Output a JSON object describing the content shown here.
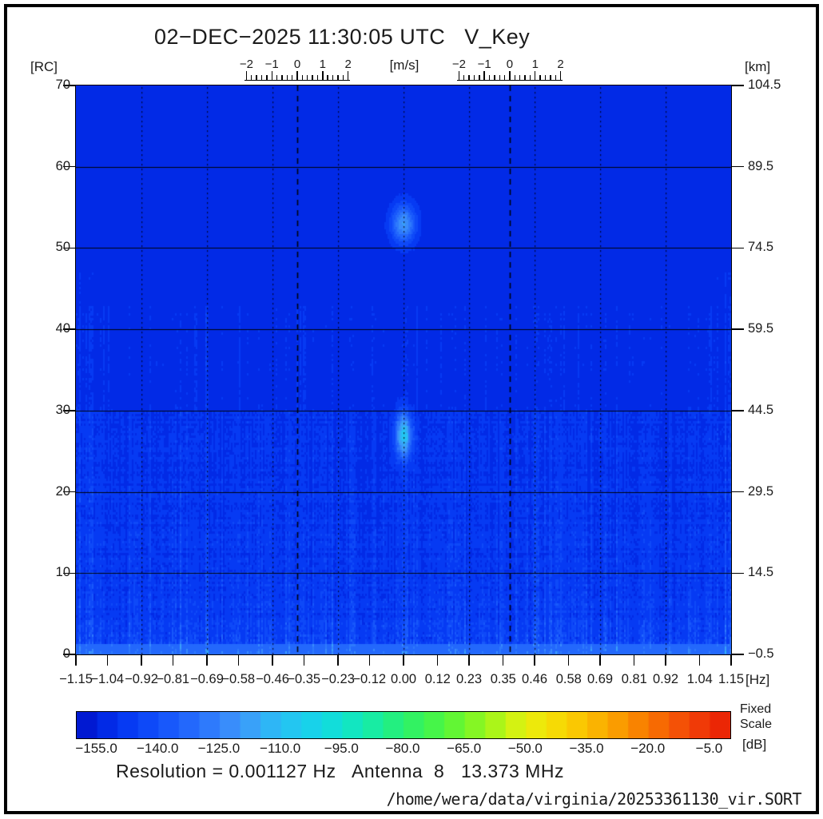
{
  "header": {
    "title": "02−DEC−2025 11:30:05 UTC   V_Key"
  },
  "chart_data": {
    "type": "heatmap",
    "title": "02−DEC−2025 11:30:05 UTC   V_Key",
    "x_axis": {
      "unit": "[Hz]",
      "min": -1.15,
      "max": 1.15,
      "tick_labels": [
        "−1.15",
        "−1.04",
        "−0.92",
        "−0.81",
        "−0.69",
        "−0.58",
        "−0.46",
        "−0.35",
        "−0.23",
        "−0.12",
        "0.00",
        "0.12",
        "0.23",
        "0.35",
        "0.46",
        "0.58",
        "0.69",
        "0.81",
        "0.92",
        "1.04",
        "1.15"
      ]
    },
    "y_axis_left": {
      "unit": "[RC]",
      "min": 0,
      "max": 70,
      "ticks": [
        70,
        60,
        50,
        40,
        30,
        20,
        10,
        0
      ]
    },
    "y_axis_right": {
      "unit": "[km]",
      "tick_labels": [
        "104.5",
        "89.5",
        "74.5",
        "59.5",
        "44.5",
        "29.5",
        "14.5",
        "−0.5"
      ]
    },
    "velocity_rulers": {
      "unit": "[m/s]",
      "centers_hz": [
        -0.373,
        0.373
      ],
      "major_tick_labels": [
        "−2",
        "−1",
        "0",
        "1",
        "2"
      ],
      "minor_step_ms": 0.2,
      "hz_per_ms": 0.0892
    },
    "grid": {
      "y_solid_rc": [
        10,
        20,
        30,
        40,
        50,
        60
      ],
      "x_dotted_hz": [
        -0.92,
        -0.69,
        -0.46,
        -0.23,
        0.0,
        0.23,
        0.46,
        0.69,
        0.92
      ],
      "bragg_dashed_hz": [
        -0.373,
        0.373
      ]
    },
    "colorbar": {
      "unit": "[dB]",
      "note_line1": "Fixed",
      "note_line2": "Scale",
      "min_db": -160,
      "max_db": 0,
      "segment_db": 5,
      "tick_labels": [
        "−155.0",
        "−140.0",
        "−125.0",
        "−110.0",
        "−95.0",
        "−80.0",
        "−65.0",
        "−50.0",
        "−35.0",
        "−20.0",
        "−5.0"
      ]
    },
    "background_db": -153.5,
    "echoes": [
      {
        "freq_hz": 0.0,
        "range_cell": 53,
        "peak_db": -120,
        "sigma_hz": 0.042,
        "sigma_rc": 2.3
      },
      {
        "freq_hz": 0.0,
        "range_cell": 27,
        "peak_db": -112,
        "sigma_hz": 0.027,
        "sigma_rc": 2.6
      }
    ],
    "noise_floor": {
      "description": "vertical streak noise, amplitude (dB above background) rising toward low range cells",
      "bands_rc_amp": [
        [
          1.3,
          46
        ],
        [
          2.6,
          34
        ],
        [
          4.5,
          26
        ],
        [
          10,
          21
        ],
        [
          20,
          17
        ],
        [
          30,
          13
        ],
        [
          43,
          5.5
        ],
        [
          70,
          2
        ]
      ]
    }
  },
  "footer": {
    "resolution_line": "Resolution = 0.001127 Hz   Antenna  8   13.373 MHz",
    "file_path": "/home/wera/data/virginia/20253361130_vir.SORT"
  }
}
